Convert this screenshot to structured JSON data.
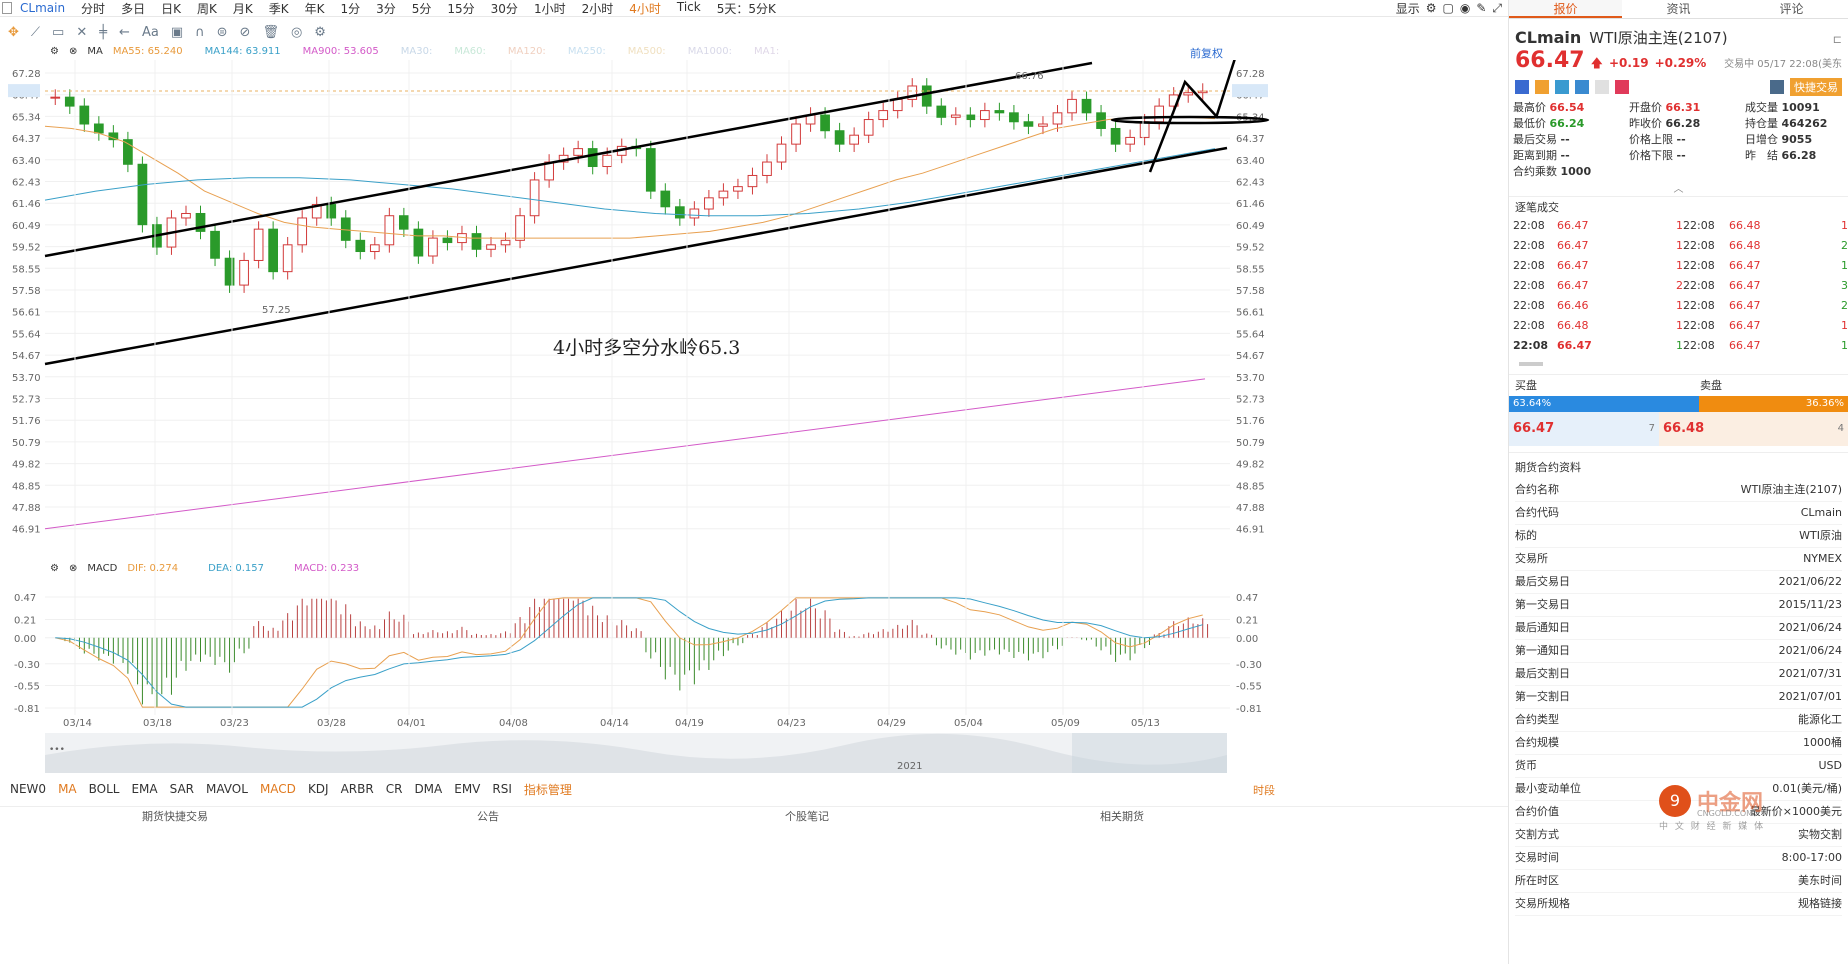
{
  "topbar": {
    "symbol": "CLmain",
    "periods": [
      "分时",
      "多日",
      "日K",
      "周K",
      "月K",
      "季K",
      "年K",
      "1分",
      "3分",
      "5分",
      "15分",
      "30分",
      "1小时",
      "2小时",
      "4小时",
      "Tick",
      "5天：5分K"
    ],
    "active_period": "4小时",
    "display_label": "显示"
  },
  "toolbar": {
    "text_tool": "Aa"
  },
  "ma_bar": {
    "label": "MA",
    "items": [
      {
        "text": "MA55: 65.240",
        "color": "#e89a3c"
      },
      {
        "text": "MA144: 63.911",
        "color": "#3aa0c8"
      },
      {
        "text": "MA900: 53.605",
        "color": "#d35ac8"
      },
      {
        "text": "MA30:",
        "color": "#c8d8e8"
      },
      {
        "text": "MA60:",
        "color": "#c8e8d8"
      },
      {
        "text": "MA120:",
        "color": "#f0d0c0"
      },
      {
        "text": "MA250:",
        "color": "#c8e0f0"
      },
      {
        "text": "MA500:",
        "color": "#f0e0c0"
      },
      {
        "text": "MA1000:",
        "color": "#d8d8e8"
      },
      {
        "text": "MA1:",
        "color": "#e0d8e8"
      }
    ],
    "adjust": "前复权"
  },
  "macd_bar": {
    "label": "MACD",
    "items": [
      {
        "text": "DIF: 0.274",
        "color": "#e89a3c"
      },
      {
        "text": "DEA: 0.157",
        "color": "#3aa0c8"
      },
      {
        "text": "MACD: 0.233",
        "color": "#d35ac8"
      }
    ]
  },
  "chart_data": {
    "type": "candlestick",
    "price_ticks": [
      "67.28",
      "66.47",
      "65.34",
      "64.37",
      "63.40",
      "62.43",
      "61.46",
      "60.49",
      "59.52",
      "58.55",
      "57.58",
      "56.61",
      "55.64",
      "54.67",
      "53.70",
      "52.73",
      "51.76",
      "50.79",
      "49.82",
      "48.85",
      "47.88",
      "46.91"
    ],
    "current_price": 66.47,
    "high_label": "66.76",
    "low_label": "57.25",
    "annotation": "4小时多空分水岭65.3",
    "date_ticks": [
      "03/14",
      "03/18",
      "03/23",
      "03/28",
      "04/01",
      "04/08",
      "04/14",
      "04/19",
      "04/23",
      "04/29",
      "05/04",
      "05/09",
      "05/13"
    ],
    "year_label": "2021",
    "macd_ticks": [
      "0.47",
      "0.21",
      "0.00",
      "-0.30",
      "-0.55",
      "-0.81"
    ],
    "closes": [
      66.2,
      65.8,
      65.0,
      64.6,
      64.3,
      63.2,
      60.5,
      59.5,
      60.8,
      61.0,
      60.2,
      59.0,
      57.8,
      58.9,
      60.3,
      58.4,
      59.6,
      60.8,
      61.4,
      60.8,
      59.8,
      59.3,
      59.6,
      60.9,
      60.3,
      59.1,
      59.9,
      59.7,
      60.1,
      59.4,
      59.6,
      59.8,
      60.9,
      62.5,
      63.3,
      63.6,
      63.9,
      63.1,
      63.6,
      64.0,
      63.9,
      62.0,
      61.3,
      60.8,
      61.2,
      61.7,
      62.0,
      62.2,
      62.7,
      63.3,
      64.1,
      65.0,
      65.4,
      64.7,
      64.1,
      64.5,
      65.2,
      65.6,
      66.1,
      66.7,
      65.8,
      65.3,
      65.4,
      65.2,
      65.6,
      65.5,
      65.1,
      64.9,
      65.0,
      65.5,
      66.1,
      65.5,
      64.8,
      64.1,
      64.4,
      65.1,
      65.8,
      66.3,
      66.4,
      66.47
    ],
    "ma55": [
      64.9,
      64.8,
      64.6,
      64.2,
      63.5,
      62.8,
      62.0,
      61.5,
      61.0,
      60.6,
      60.4,
      60.3,
      60.2,
      60.1,
      60.0,
      60.0,
      59.9,
      59.9,
      59.9,
      59.9,
      59.9,
      59.9,
      59.9,
      60.0,
      60.1,
      60.2,
      60.4,
      60.6,
      60.9,
      61.3,
      61.7,
      62.1,
      62.5,
      62.8,
      63.2,
      63.6,
      64.0,
      64.4,
      64.8,
      65.0,
      65.2,
      65.3,
      65.3,
      65.3,
      65.24
    ],
    "ma144": [
      61.6,
      62.0,
      62.3,
      62.5,
      62.6,
      62.6,
      62.5,
      62.3,
      62.1,
      61.8,
      61.5,
      61.2,
      61.0,
      60.9,
      60.9,
      61.0,
      61.2,
      61.5,
      61.9,
      62.3,
      62.7,
      63.1,
      63.5,
      63.9
    ],
    "ma900": [
      46.91,
      53.605
    ]
  },
  "right_panel": {
    "tabs": [
      "报价",
      "资讯",
      "评论"
    ],
    "active_tab": "报价",
    "symbol": "CLmain",
    "name": "WTI原油主连(2107)",
    "price": "66.47",
    "change": "+0.19",
    "change_pct": "+0.29%",
    "trade_status": "交易中 05/17 22:08(美东",
    "quick_trade": "快捷交易",
    "stats": [
      {
        "k": "最高价",
        "v": "66.54",
        "c": "red"
      },
      {
        "k": "开盘价",
        "v": "66.31",
        "c": "red"
      },
      {
        "k": "成交量",
        "v": "10091",
        "c": ""
      },
      {
        "k": "最低价",
        "v": "66.24",
        "c": "green"
      },
      {
        "k": "昨收价",
        "v": "66.28",
        "c": ""
      },
      {
        "k": "持仓量",
        "v": "464262",
        "c": ""
      },
      {
        "k": "最后交易",
        "v": "--",
        "c": ""
      },
      {
        "k": "价格上限",
        "v": "--",
        "c": ""
      },
      {
        "k": "日增仓",
        "v": "9055",
        "c": ""
      },
      {
        "k": "距离到期",
        "v": "--",
        "c": ""
      },
      {
        "k": "价格下限",
        "v": "--",
        "c": ""
      },
      {
        "k": "昨　结",
        "v": "66.28",
        "c": ""
      },
      {
        "k": "合约乘数",
        "v": "1000",
        "c": ""
      }
    ],
    "trades_title": "逐笔成交",
    "trades": [
      [
        "22:08",
        "66.47",
        "1",
        "22:08",
        "66.48",
        "1"
      ],
      [
        "22:08",
        "66.47",
        "1",
        "22:08",
        "66.48",
        "2"
      ],
      [
        "22:08",
        "66.47",
        "1",
        "22:08",
        "66.47",
        "1"
      ],
      [
        "22:08",
        "66.47",
        "2",
        "22:08",
        "66.47",
        "3"
      ],
      [
        "22:08",
        "66.46",
        "1",
        "22:08",
        "66.47",
        "2"
      ],
      [
        "22:08",
        "66.48",
        "1",
        "22:08",
        "66.47",
        "1"
      ],
      [
        "22:08",
        "66.47",
        "1",
        "22:08",
        "66.47",
        "1"
      ]
    ],
    "bid_label": "买盘",
    "ask_label": "卖盘",
    "bid_pct": "63.64%",
    "ask_pct": "36.36%",
    "bid_price": "66.47",
    "bid_qty": "7",
    "ask_price": "66.48",
    "ask_qty": "4",
    "info_title": "期货合约资料",
    "info": [
      [
        "合约名称",
        "WTI原油主连(2107)"
      ],
      [
        "合约代码",
        "CLmain"
      ],
      [
        "标的",
        "WTI原油"
      ],
      [
        "交易所",
        "NYMEX"
      ],
      [
        "最后交易日",
        "2021/06/22"
      ],
      [
        "第一交易日",
        "2015/11/23"
      ],
      [
        "最后通知日",
        "2021/06/24"
      ],
      [
        "第一通知日",
        "2021/06/24"
      ],
      [
        "最后交割日",
        "2021/07/31"
      ],
      [
        "第一交割日",
        "2021/07/01"
      ],
      [
        "合约类型",
        "能源化工"
      ],
      [
        "合约规模",
        "1000桶"
      ],
      [
        "货币",
        "USD"
      ],
      [
        "最小变动单位",
        "0.01(美元/桶)"
      ],
      [
        "合约价值",
        "最新价×1000美元"
      ],
      [
        "交割方式",
        "实物交割"
      ],
      [
        "交易时间",
        "8:00-17:00"
      ],
      [
        "所在时区",
        "美东时间"
      ],
      [
        "交易所规格",
        "规格链接"
      ]
    ]
  },
  "bottom_tabs": [
    "NEW0",
    "MA",
    "BOLL",
    "EMA",
    "SAR",
    "MAVOL",
    "MACD",
    "KDJ",
    "ARBR",
    "CR",
    "DMA",
    "EMV",
    "RSI",
    "指标管理"
  ],
  "bottom_right": "时段",
  "footer": [
    "期货快捷交易",
    "公告",
    "个股笔记",
    "相关期货"
  ],
  "watermark": {
    "brand": "中金网",
    "url": "CNGOLD.COM",
    "slogan": "中 文 财 经 新 媒 体"
  }
}
